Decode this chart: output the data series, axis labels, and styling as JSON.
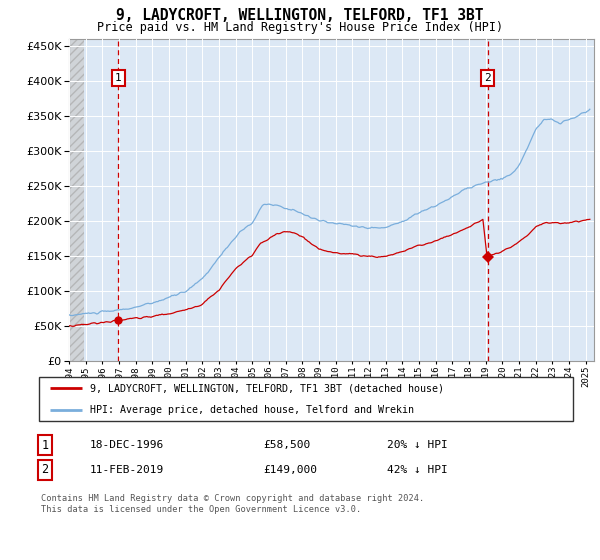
{
  "title": "9, LADYCROFT, WELLINGTON, TELFORD, TF1 3BT",
  "subtitle": "Price paid vs. HM Land Registry's House Price Index (HPI)",
  "legend_entry1": "9, LADYCROFT, WELLINGTON, TELFORD, TF1 3BT (detached house)",
  "legend_entry2": "HPI: Average price, detached house, Telford and Wrekin",
  "annotation1_label": "1",
  "annotation1_date": "18-DEC-1996",
  "annotation1_price": "£58,500",
  "annotation1_hpi": "20% ↓ HPI",
  "annotation2_label": "2",
  "annotation2_date": "11-FEB-2019",
  "annotation2_price": "£149,000",
  "annotation2_hpi": "42% ↓ HPI",
  "footnote": "Contains HM Land Registry data © Crown copyright and database right 2024.\nThis data is licensed under the Open Government Licence v3.0.",
  "ylim": [
    0,
    460000
  ],
  "yticks": [
    0,
    50000,
    100000,
    150000,
    200000,
    250000,
    300000,
    350000,
    400000,
    450000
  ],
  "hpi_color": "#7aaedc",
  "price_color": "#cc0000",
  "annotation_color": "#cc0000",
  "bg_plot": "#dce8f5",
  "grid_color": "#ffffff",
  "purchase1_year": 1996.96,
  "purchase1_price": 58500,
  "purchase2_year": 2019.11,
  "purchase2_price": 149000,
  "xlim_left": 1994.0,
  "xlim_right": 2025.5
}
